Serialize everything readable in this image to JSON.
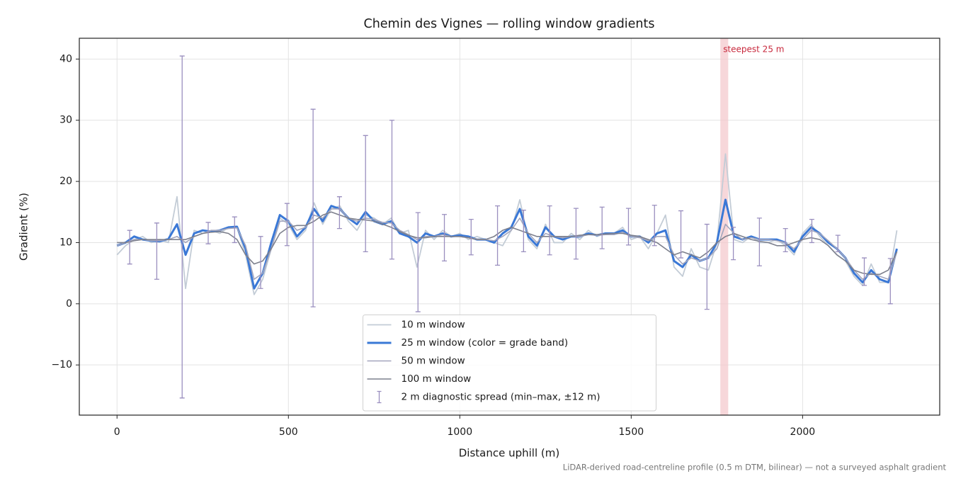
{
  "chart_data": {
    "type": "line",
    "title": "Chemin des Vignes — rolling window gradients",
    "x_label": "Distance uphill (m)",
    "y_label": "Gradient (%)",
    "footnote": "LiDAR-derived road-centreline profile (0.5 m DTM, bilinear) — not a surveyed asphalt gradient",
    "xlim": [
      -110,
      2400
    ],
    "ylim": [
      -18.2,
      43.4
    ],
    "xticks": [
      0,
      500,
      1000,
      1500,
      2000
    ],
    "yticks": [
      {
        "value": -10,
        "label": "−10"
      },
      0,
      10,
      20,
      30,
      40
    ],
    "grid": true,
    "x": [
      0,
      25,
      50,
      75,
      100,
      125,
      150,
      175,
      200,
      225,
      250,
      275,
      300,
      325,
      350,
      375,
      400,
      425,
      450,
      475,
      500,
      525,
      550,
      575,
      600,
      625,
      650,
      675,
      700,
      725,
      750,
      775,
      800,
      825,
      850,
      875,
      900,
      925,
      950,
      975,
      1000,
      1025,
      1050,
      1075,
      1100,
      1125,
      1150,
      1175,
      1200,
      1225,
      1250,
      1275,
      1300,
      1325,
      1350,
      1375,
      1400,
      1425,
      1450,
      1475,
      1500,
      1525,
      1550,
      1575,
      1600,
      1625,
      1650,
      1675,
      1700,
      1725,
      1750,
      1775,
      1800,
      1825,
      1850,
      1875,
      1900,
      1925,
      1950,
      1975,
      2000,
      2025,
      2050,
      2075,
      2100,
      2125,
      2150,
      2175,
      2200,
      2225,
      2250,
      2275
    ],
    "series": [
      {
        "name": "10 m window",
        "color": "#c3ccd6",
        "width": 1.8,
        "values": [
          8,
          9.5,
          10.5,
          11,
          10,
          10.5,
          10,
          17.5,
          2.5,
          12,
          11.5,
          12,
          11.5,
          12.5,
          12.5,
          8,
          1.5,
          4,
          9,
          14,
          13,
          10.5,
          12,
          16.5,
          13,
          15.5,
          16,
          13.5,
          12,
          14.5,
          14,
          13,
          14,
          11.5,
          12,
          6,
          12,
          10.5,
          12,
          11,
          11.5,
          10.5,
          11,
          10.5,
          10,
          9.5,
          12,
          17,
          10.5,
          9,
          13,
          10,
          10,
          11.5,
          10.5,
          12,
          11,
          11.5,
          11.5,
          12.5,
          10.5,
          11,
          9,
          11.5,
          14.5,
          6,
          4.5,
          9,
          6,
          5.5,
          10,
          24.5,
          10.5,
          10,
          11,
          10,
          10,
          10.5,
          9.5,
          8,
          11.5,
          13,
          11,
          9.5,
          8,
          7,
          4.5,
          3,
          6.5,
          3.5,
          3.5,
          12
        ]
      },
      {
        "name": "25 m window (color = grade band)",
        "color": "#3a78d6",
        "width": 3,
        "values": [
          9.5,
          10,
          11,
          10.5,
          10.3,
          10.2,
          10.6,
          13,
          8,
          11.5,
          12,
          11.8,
          12,
          12.5,
          12.6,
          9,
          2.5,
          5,
          10,
          14.5,
          13.5,
          11,
          12.5,
          15.5,
          13.5,
          16,
          15.5,
          14,
          13,
          15,
          13.5,
          13,
          13.5,
          11.5,
          11,
          10,
          11.5,
          11,
          11.5,
          11,
          11.2,
          11,
          10.5,
          10.5,
          10,
          11.5,
          12.5,
          15.5,
          11,
          9.5,
          12.5,
          11,
          10.5,
          11,
          11,
          11.5,
          11.2,
          11.5,
          11.5,
          12,
          11,
          11,
          10,
          11.5,
          12,
          7,
          6,
          8,
          7,
          7.5,
          10,
          17,
          11,
          10.5,
          11,
          10.5,
          10.5,
          10.5,
          10,
          8.5,
          11,
          12.5,
          11.5,
          10,
          9,
          7.5,
          5,
          3.5,
          5.5,
          4,
          3.5,
          9
        ]
      },
      {
        "name": "50 m window",
        "color": "#a3a6bd",
        "width": 1.6,
        "values": [
          9.5,
          10,
          10.5,
          10.5,
          10.3,
          10.3,
          10.5,
          11,
          10,
          11,
          11.5,
          12,
          12,
          12.3,
          12.4,
          9.5,
          4,
          5,
          9,
          13.5,
          13.5,
          12,
          12.5,
          14.5,
          14,
          15.5,
          15.5,
          14,
          13.5,
          14,
          13.8,
          13.3,
          13.2,
          12,
          11.3,
          10.5,
          11,
          11,
          11.3,
          11,
          11,
          10.8,
          10.6,
          10.5,
          10.3,
          11,
          12,
          14,
          11.5,
          10,
          11.5,
          11,
          10.8,
          11,
          11,
          11.3,
          11.2,
          11.3,
          11.3,
          11.7,
          11,
          10.8,
          10.3,
          11,
          11,
          8,
          6.5,
          7.5,
          7,
          7.5,
          9,
          13,
          11.5,
          10.5,
          10.8,
          10.5,
          10.5,
          10.3,
          10,
          9,
          10.5,
          12,
          11.5,
          10.3,
          9,
          7.5,
          5.5,
          4,
          5,
          4.5,
          4,
          8.5
        ]
      },
      {
        "name": "100 m window",
        "color": "#7d808d",
        "width": 1.6,
        "values": [
          10,
          10,
          10.3,
          10.5,
          10.5,
          10.5,
          10.5,
          10.5,
          10.5,
          11,
          11.5,
          11.7,
          11.8,
          11.5,
          10.5,
          8,
          6.5,
          7,
          9,
          11.5,
          12.5,
          12.8,
          12.8,
          13.5,
          14.5,
          15,
          14.5,
          14,
          13.8,
          13.7,
          13.5,
          13,
          12.5,
          11.8,
          11.2,
          10.8,
          10.8,
          11,
          11,
          11,
          11,
          10.8,
          10.5,
          10.5,
          11,
          12,
          12.5,
          12,
          11.5,
          11,
          11,
          11,
          11,
          11,
          11.2,
          11.3,
          11.3,
          11.4,
          11.5,
          11.5,
          11.2,
          11,
          10.5,
          10,
          9,
          8,
          8.5,
          8,
          7.5,
          8.5,
          10,
          11,
          11.5,
          11,
          10.5,
          10.2,
          10,
          9.5,
          9.5,
          10,
          10.5,
          10.8,
          10.5,
          9.5,
          8,
          7,
          5.5,
          5,
          4.8,
          4.8,
          5.5,
          8.5
        ]
      }
    ],
    "errorbars": {
      "name": "2 m diagnostic spread (min–max, ±12 m)",
      "color": "#9a8fbf",
      "x": [
        37,
        116,
        190,
        266,
        343,
        419,
        496,
        572,
        649,
        725,
        802,
        878,
        955,
        1033,
        1110,
        1186,
        1262,
        1339,
        1415,
        1492,
        1568,
        1645,
        1721,
        1798,
        1874,
        1950,
        2027,
        2103,
        2180,
        2256
      ],
      "low": [
        6.5,
        4,
        -15.4,
        9.8,
        10,
        2.5,
        9.5,
        -0.5,
        12.3,
        8.5,
        7.3,
        -1.3,
        7,
        8,
        6.3,
        8.5,
        8,
        7.3,
        9,
        9.6,
        9.5,
        7.5,
        -0.9,
        7.2,
        6.2,
        8.5,
        10,
        8.5,
        3,
        0
      ],
      "high": [
        12,
        13.2,
        40.5,
        13.3,
        14.2,
        11,
        16.4,
        31.8,
        17.5,
        27.5,
        30,
        14.9,
        14.6,
        13.8,
        16,
        15.3,
        16,
        15.6,
        15.8,
        15.6,
        16.1,
        15.2,
        13,
        12.5,
        14,
        12.3,
        13.8,
        11.2,
        7.5,
        7.4
      ]
    },
    "highlight": {
      "xlim": [
        1760,
        1783
      ],
      "label": "steepest 25 m",
      "color": "#f3c6cb",
      "label_color": "#c8283c"
    },
    "legend": "lower center"
  }
}
